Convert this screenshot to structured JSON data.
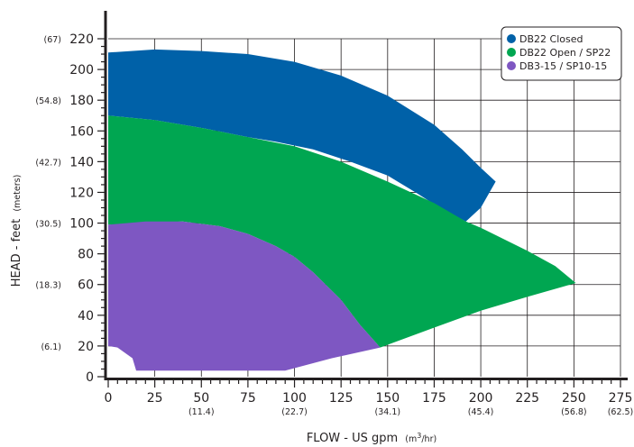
{
  "chart_data": {
    "type": "area",
    "xlabel": "FLOW - US gpm",
    "xlabel_unit": "(m3/hr)",
    "xlabel_unit_pre": "(m",
    "xlabel_unit_sup": "3",
    "xlabel_unit_post": "/hr)",
    "ylabel": "HEAD - feet",
    "ylabel_unit": "(meters)",
    "xlim": [
      0,
      275
    ],
    "ylim": [
      0,
      220
    ],
    "grid": true,
    "legend_position": "top-right",
    "x_ticks": [
      {
        "value": 0,
        "label": "0",
        "sub": ""
      },
      {
        "value": 25,
        "label": "25",
        "sub": ""
      },
      {
        "value": 50,
        "label": "50",
        "sub": "(11.4)"
      },
      {
        "value": 75,
        "label": "75",
        "sub": ""
      },
      {
        "value": 100,
        "label": "100",
        "sub": "(22.7)"
      },
      {
        "value": 125,
        "label": "125",
        "sub": ""
      },
      {
        "value": 150,
        "label": "150",
        "sub": "(34.1)"
      },
      {
        "value": 175,
        "label": "175",
        "sub": ""
      },
      {
        "value": 200,
        "label": "200",
        "sub": "(45.4)"
      },
      {
        "value": 225,
        "label": "225",
        "sub": ""
      },
      {
        "value": 250,
        "label": "250",
        "sub": "(56.8)"
      },
      {
        "value": 275,
        "label": "275",
        "sub": "(62.5)"
      }
    ],
    "y_ticks": [
      {
        "value": 0,
        "label": "0",
        "sub": ""
      },
      {
        "value": 20,
        "label": "20",
        "sub": "(6.1)"
      },
      {
        "value": 40,
        "label": "40",
        "sub": ""
      },
      {
        "value": 60,
        "label": "60",
        "sub": "(18.3)"
      },
      {
        "value": 80,
        "label": "80",
        "sub": ""
      },
      {
        "value": 100,
        "label": "100",
        "sub": "(30.5)"
      },
      {
        "value": 120,
        "label": "120",
        "sub": ""
      },
      {
        "value": 140,
        "label": "140",
        "sub": "(42.7)"
      },
      {
        "value": 160,
        "label": "160",
        "sub": ""
      },
      {
        "value": 180,
        "label": "180",
        "sub": "(54.8)"
      },
      {
        "value": 200,
        "label": "200",
        "sub": ""
      },
      {
        "value": 220,
        "label": "220",
        "sub": "(67)"
      }
    ],
    "series": [
      {
        "name": "DB22 Closed",
        "color": "#0061a8",
        "points": [
          [
            0,
            211
          ],
          [
            25,
            213
          ],
          [
            50,
            212
          ],
          [
            75,
            210
          ],
          [
            100,
            205
          ],
          [
            125,
            196
          ],
          [
            150,
            183
          ],
          [
            175,
            164
          ],
          [
            190,
            148
          ],
          [
            200,
            136
          ],
          [
            208,
            127
          ],
          [
            200,
            110
          ],
          [
            192,
            101
          ],
          [
            178,
            110
          ],
          [
            165,
            120
          ],
          [
            150,
            131
          ],
          [
            130,
            140
          ],
          [
            110,
            148
          ],
          [
            90,
            153
          ],
          [
            75,
            156
          ],
          [
            50,
            162
          ],
          [
            25,
            167
          ],
          [
            0,
            170
          ]
        ]
      },
      {
        "name": "DB22 Open / SP22",
        "color": "#00a651",
        "points": [
          [
            0,
            170
          ],
          [
            25,
            167
          ],
          [
            50,
            162
          ],
          [
            75,
            156
          ],
          [
            100,
            150
          ],
          [
            125,
            140
          ],
          [
            150,
            127
          ],
          [
            175,
            113
          ],
          [
            192,
            101
          ],
          [
            200,
            97
          ],
          [
            225,
            82
          ],
          [
            240,
            72
          ],
          [
            251,
            61
          ],
          [
            225,
            52
          ],
          [
            200,
            43
          ],
          [
            175,
            32
          ],
          [
            146,
            19
          ],
          [
            135,
            34
          ],
          [
            125,
            50
          ],
          [
            110,
            68
          ],
          [
            100,
            78
          ],
          [
            90,
            85
          ],
          [
            75,
            93
          ],
          [
            60,
            98
          ],
          [
            40,
            101
          ],
          [
            20,
            100
          ],
          [
            0,
            99
          ]
        ]
      },
      {
        "name": "DB3-15 / SP10-15",
        "color": "#7e57c2",
        "points": [
          [
            0,
            99
          ],
          [
            20,
            101
          ],
          [
            40,
            101
          ],
          [
            60,
            98
          ],
          [
            75,
            93
          ],
          [
            90,
            85
          ],
          [
            100,
            78
          ],
          [
            110,
            68
          ],
          [
            125,
            50
          ],
          [
            135,
            34
          ],
          [
            146,
            19
          ],
          [
            120,
            12
          ],
          [
            95,
            4
          ],
          [
            15,
            4
          ],
          [
            13,
            12
          ],
          [
            5,
            19
          ],
          [
            0,
            20
          ]
        ]
      }
    ]
  }
}
